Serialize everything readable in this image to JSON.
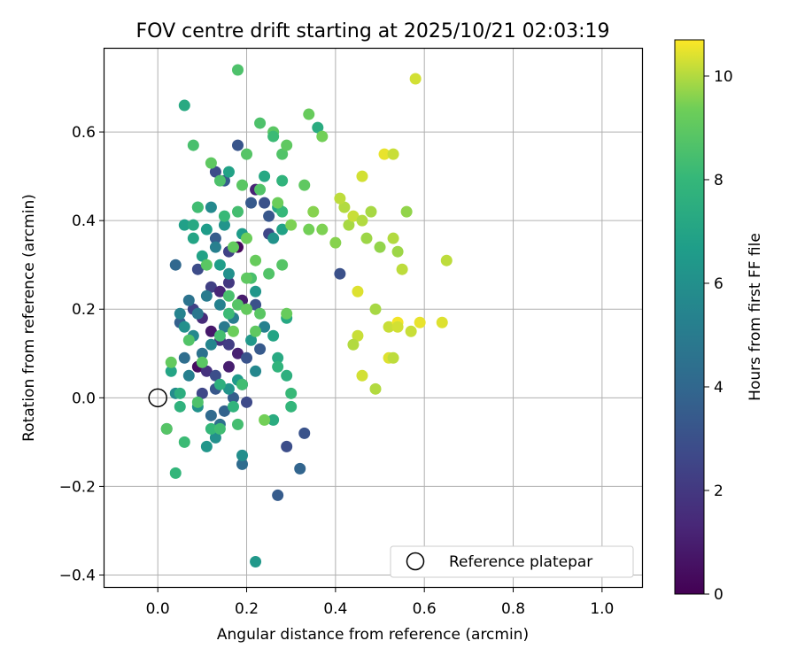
{
  "chart_data": {
    "type": "scatter",
    "title": "FOV centre drift starting at 2025/10/21 02:03:19",
    "xlabel": "Angular distance from reference (arcmin)",
    "ylabel": "Rotation from reference (arcmin)",
    "xlim": [
      -0.12,
      1.09
    ],
    "ylim": [
      -0.427,
      0.788
    ],
    "xticks": [
      0.0,
      0.2,
      0.4,
      0.6,
      0.8,
      1.0
    ],
    "xtick_labels": [
      "0.0",
      "0.2",
      "0.4",
      "0.6",
      "0.8",
      "1.0"
    ],
    "yticks": [
      -0.4,
      -0.2,
      0.0,
      0.2,
      0.4,
      0.6
    ],
    "ytick_labels": [
      "−0.4",
      "−0.2",
      "0.0",
      "0.2",
      "0.4",
      "0.6"
    ],
    "grid": true,
    "colorbar": {
      "label": "Hours from first FF file",
      "range": [
        0,
        10.7
      ],
      "colormap": "viridis",
      "ticks": [
        0,
        2,
        4,
        6,
        8,
        10
      ],
      "tick_labels": [
        "0",
        "2",
        "4",
        "6",
        "8",
        "10"
      ]
    },
    "legend": {
      "position": "lower-right",
      "label": "Reference platepar",
      "marker": "open circle"
    },
    "reference_point": {
      "x": 0.0,
      "y": 0.0
    },
    "points": [
      {
        "x": 0.18,
        "y": 0.57,
        "h": 3.2
      },
      {
        "x": 0.13,
        "y": 0.51,
        "h": 2.8
      },
      {
        "x": 0.15,
        "y": 0.49,
        "h": 3.5
      },
      {
        "x": 0.22,
        "y": 0.47,
        "h": 1.2
      },
      {
        "x": 0.24,
        "y": 0.44,
        "h": 3.0
      },
      {
        "x": 0.21,
        "y": 0.44,
        "h": 3.4
      },
      {
        "x": 0.25,
        "y": 0.41,
        "h": 3.3
      },
      {
        "x": 0.25,
        "y": 0.37,
        "h": 2.6
      },
      {
        "x": 0.41,
        "y": 0.28,
        "h": 3.0
      },
      {
        "x": 0.04,
        "y": 0.3,
        "h": 4.0
      },
      {
        "x": 0.13,
        "y": 0.36,
        "h": 3.5
      },
      {
        "x": 0.16,
        "y": 0.33,
        "h": 2.4
      },
      {
        "x": 0.18,
        "y": 0.34,
        "h": 0.3
      },
      {
        "x": 0.09,
        "y": 0.29,
        "h": 2.8
      },
      {
        "x": 0.12,
        "y": 0.25,
        "h": 2.3
      },
      {
        "x": 0.14,
        "y": 0.24,
        "h": 1.3
      },
      {
        "x": 0.16,
        "y": 0.26,
        "h": 2.0
      },
      {
        "x": 0.19,
        "y": 0.22,
        "h": 0.9
      },
      {
        "x": 0.22,
        "y": 0.21,
        "h": 3.0
      },
      {
        "x": 0.08,
        "y": 0.2,
        "h": 2.4
      },
      {
        "x": 0.1,
        "y": 0.18,
        "h": 1.5
      },
      {
        "x": 0.12,
        "y": 0.15,
        "h": 0.8
      },
      {
        "x": 0.14,
        "y": 0.13,
        "h": 1.8
      },
      {
        "x": 0.16,
        "y": 0.12,
        "h": 2.2
      },
      {
        "x": 0.18,
        "y": 0.1,
        "h": 1.1
      },
      {
        "x": 0.2,
        "y": 0.09,
        "h": 3.1
      },
      {
        "x": 0.23,
        "y": 0.11,
        "h": 3.4
      },
      {
        "x": 0.09,
        "y": 0.07,
        "h": 0.4
      },
      {
        "x": 0.11,
        "y": 0.06,
        "h": 1.7
      },
      {
        "x": 0.13,
        "y": 0.05,
        "h": 2.9
      },
      {
        "x": 0.16,
        "y": 0.07,
        "h": 1.0
      },
      {
        "x": 0.19,
        "y": 0.03,
        "h": 1.9
      },
      {
        "x": 0.1,
        "y": 0.01,
        "h": 2.6
      },
      {
        "x": 0.13,
        "y": 0.02,
        "h": 3.3
      },
      {
        "x": 0.17,
        "y": 0.0,
        "h": 3.6
      },
      {
        "x": 0.2,
        "y": -0.01,
        "h": 2.7
      },
      {
        "x": 0.15,
        "y": -0.03,
        "h": 3.8
      },
      {
        "x": 0.12,
        "y": -0.04,
        "h": 4.1
      },
      {
        "x": 0.14,
        "y": -0.06,
        "h": 4.4
      },
      {
        "x": 0.29,
        "y": -0.11,
        "h": 2.9
      },
      {
        "x": 0.33,
        "y": -0.08,
        "h": 3.1
      },
      {
        "x": 0.32,
        "y": -0.16,
        "h": 3.9
      },
      {
        "x": 0.27,
        "y": -0.22,
        "h": 3.5
      },
      {
        "x": 0.19,
        "y": -0.15,
        "h": 4.2
      },
      {
        "x": 0.02,
        "y": -0.07,
        "h": 4.0
      },
      {
        "x": 0.06,
        "y": 0.09,
        "h": 4.3
      },
      {
        "x": 0.05,
        "y": 0.17,
        "h": 3.7
      },
      {
        "x": 0.07,
        "y": 0.22,
        "h": 4.6
      },
      {
        "x": 0.09,
        "y": 0.19,
        "h": 4.8
      },
      {
        "x": 0.11,
        "y": 0.23,
        "h": 5.0
      },
      {
        "x": 0.14,
        "y": 0.21,
        "h": 5.3
      },
      {
        "x": 0.17,
        "y": 0.18,
        "h": 5.1
      },
      {
        "x": 0.15,
        "y": 0.16,
        "h": 4.9
      },
      {
        "x": 0.12,
        "y": 0.12,
        "h": 5.5
      },
      {
        "x": 0.1,
        "y": 0.1,
        "h": 4.5
      },
      {
        "x": 0.08,
        "y": 0.14,
        "h": 5.7
      },
      {
        "x": 0.06,
        "y": 0.16,
        "h": 6.0
      },
      {
        "x": 0.05,
        "y": 0.19,
        "h": 5.4
      },
      {
        "x": 0.07,
        "y": 0.05,
        "h": 5.2
      },
      {
        "x": 0.04,
        "y": 0.01,
        "h": 5.8
      },
      {
        "x": 0.09,
        "y": -0.02,
        "h": 6.1
      },
      {
        "x": 0.11,
        "y": -0.11,
        "h": 6.3
      },
      {
        "x": 0.13,
        "y": -0.09,
        "h": 6.0
      },
      {
        "x": 0.19,
        "y": -0.13,
        "h": 5.9
      },
      {
        "x": 0.22,
        "y": 0.06,
        "h": 5.6
      },
      {
        "x": 0.16,
        "y": 0.02,
        "h": 6.2
      },
      {
        "x": 0.18,
        "y": 0.04,
        "h": 6.5
      },
      {
        "x": 0.21,
        "y": 0.13,
        "h": 6.4
      },
      {
        "x": 0.24,
        "y": 0.16,
        "h": 5.3
      },
      {
        "x": 0.12,
        "y": 0.43,
        "h": 5.7
      },
      {
        "x": 0.15,
        "y": 0.39,
        "h": 6.2
      },
      {
        "x": 0.11,
        "y": 0.38,
        "h": 6.6
      },
      {
        "x": 0.08,
        "y": 0.36,
        "h": 7.0
      },
      {
        "x": 0.14,
        "y": 0.3,
        "h": 6.7
      },
      {
        "x": 0.16,
        "y": 0.28,
        "h": 6.0
      },
      {
        "x": 0.13,
        "y": 0.34,
        "h": 5.2
      },
      {
        "x": 0.1,
        "y": 0.32,
        "h": 6.9
      },
      {
        "x": 0.06,
        "y": 0.39,
        "h": 6.8
      },
      {
        "x": 0.08,
        "y": 0.39,
        "h": 7.2
      },
      {
        "x": 0.19,
        "y": 0.37,
        "h": 6.6
      },
      {
        "x": 0.22,
        "y": 0.24,
        "h": 6.3
      },
      {
        "x": 0.26,
        "y": 0.36,
        "h": 6.1
      },
      {
        "x": 0.28,
        "y": 0.38,
        "h": 6.9
      },
      {
        "x": 0.27,
        "y": 0.43,
        "h": 7.1
      },
      {
        "x": 0.24,
        "y": 0.5,
        "h": 7.2
      },
      {
        "x": 0.16,
        "y": 0.51,
        "h": 6.9
      },
      {
        "x": 0.06,
        "y": 0.66,
        "h": 7.3
      },
      {
        "x": 0.36,
        "y": 0.61,
        "h": 7.4
      },
      {
        "x": 0.26,
        "y": 0.14,
        "h": 7.0
      },
      {
        "x": 0.27,
        "y": 0.09,
        "h": 7.3
      },
      {
        "x": 0.29,
        "y": 0.05,
        "h": 7.6
      },
      {
        "x": 0.27,
        "y": 0.07,
        "h": 7.8
      },
      {
        "x": 0.3,
        "y": 0.01,
        "h": 8.1
      },
      {
        "x": 0.3,
        "y": -0.02,
        "h": 7.9
      },
      {
        "x": 0.26,
        "y": -0.05,
        "h": 7.4
      },
      {
        "x": 0.29,
        "y": 0.18,
        "h": 7.2
      },
      {
        "x": 0.05,
        "y": 0.01,
        "h": 7.5
      },
      {
        "x": 0.05,
        "y": -0.02,
        "h": 7.7
      },
      {
        "x": 0.03,
        "y": 0.06,
        "h": 7.0
      },
      {
        "x": 0.04,
        "y": -0.17,
        "h": 7.9
      },
      {
        "x": 0.06,
        "y": -0.1,
        "h": 8.2
      },
      {
        "x": 0.12,
        "y": -0.07,
        "h": 8.0
      },
      {
        "x": 0.14,
        "y": -0.07,
        "h": 8.3
      },
      {
        "x": 0.18,
        "y": -0.06,
        "h": 8.4
      },
      {
        "x": 0.22,
        "y": -0.37,
        "h": 6.4
      },
      {
        "x": 0.17,
        "y": -0.02,
        "h": 7.8
      },
      {
        "x": 0.14,
        "y": 0.03,
        "h": 7.6
      },
      {
        "x": 0.19,
        "y": 0.03,
        "h": 8.3
      },
      {
        "x": 0.02,
        "y": -0.07,
        "h": 8.8
      },
      {
        "x": 0.09,
        "y": -0.01,
        "h": 8.6
      },
      {
        "x": 0.03,
        "y": 0.08,
        "h": 9.1
      },
      {
        "x": 0.1,
        "y": 0.08,
        "h": 8.9
      },
      {
        "x": 0.07,
        "y": 0.13,
        "h": 8.7
      },
      {
        "x": 0.14,
        "y": 0.14,
        "h": 8.4
      },
      {
        "x": 0.16,
        "y": 0.19,
        "h": 8.2
      },
      {
        "x": 0.18,
        "y": 0.21,
        "h": 8.8
      },
      {
        "x": 0.21,
        "y": 0.27,
        "h": 8.5
      },
      {
        "x": 0.23,
        "y": 0.19,
        "h": 8.9
      },
      {
        "x": 0.22,
        "y": 0.15,
        "h": 9.0
      },
      {
        "x": 0.15,
        "y": 0.41,
        "h": 8.1
      },
      {
        "x": 0.18,
        "y": 0.42,
        "h": 8.4
      },
      {
        "x": 0.09,
        "y": 0.43,
        "h": 7.9
      },
      {
        "x": 0.28,
        "y": 0.42,
        "h": 8.0
      },
      {
        "x": 0.28,
        "y": 0.49,
        "h": 7.8
      },
      {
        "x": 0.14,
        "y": 0.49,
        "h": 8.6
      },
      {
        "x": 0.19,
        "y": 0.48,
        "h": 8.9
      },
      {
        "x": 0.23,
        "y": 0.47,
        "h": 8.7
      },
      {
        "x": 0.12,
        "y": 0.53,
        "h": 9.0
      },
      {
        "x": 0.2,
        "y": 0.55,
        "h": 8.8
      },
      {
        "x": 0.08,
        "y": 0.57,
        "h": 8.5
      },
      {
        "x": 0.23,
        "y": 0.62,
        "h": 8.6
      },
      {
        "x": 0.26,
        "y": 0.6,
        "h": 8.9
      },
      {
        "x": 0.26,
        "y": 0.59,
        "h": 8.2
      },
      {
        "x": 0.28,
        "y": 0.55,
        "h": 8.7
      },
      {
        "x": 0.29,
        "y": 0.57,
        "h": 9.0
      },
      {
        "x": 0.18,
        "y": 0.74,
        "h": 8.6
      },
      {
        "x": 0.34,
        "y": 0.64,
        "h": 9.2
      },
      {
        "x": 0.37,
        "y": 0.59,
        "h": 9.4
      },
      {
        "x": 0.33,
        "y": 0.48,
        "h": 9.0
      },
      {
        "x": 0.27,
        "y": 0.44,
        "h": 9.3
      },
      {
        "x": 0.3,
        "y": 0.39,
        "h": 9.5
      },
      {
        "x": 0.34,
        "y": 0.38,
        "h": 9.4
      },
      {
        "x": 0.35,
        "y": 0.42,
        "h": 9.6
      },
      {
        "x": 0.37,
        "y": 0.38,
        "h": 9.5
      },
      {
        "x": 0.25,
        "y": 0.28,
        "h": 8.7
      },
      {
        "x": 0.22,
        "y": 0.31,
        "h": 9.2
      },
      {
        "x": 0.2,
        "y": 0.27,
        "h": 9.0
      },
      {
        "x": 0.17,
        "y": 0.34,
        "h": 9.1
      },
      {
        "x": 0.2,
        "y": 0.36,
        "h": 9.3
      },
      {
        "x": 0.11,
        "y": 0.3,
        "h": 8.9
      },
      {
        "x": 0.16,
        "y": 0.23,
        "h": 8.5
      },
      {
        "x": 0.2,
        "y": 0.2,
        "h": 9.1
      },
      {
        "x": 0.17,
        "y": 0.15,
        "h": 9.3
      },
      {
        "x": 0.28,
        "y": 0.3,
        "h": 8.8
      },
      {
        "x": 0.29,
        "y": 0.19,
        "h": 9.2
      },
      {
        "x": 0.24,
        "y": -0.05,
        "h": 9.4
      },
      {
        "x": 0.09,
        "y": 0.43,
        "h": 8.3
      },
      {
        "x": 0.4,
        "y": 0.35,
        "h": 9.6
      },
      {
        "x": 0.43,
        "y": 0.39,
        "h": 9.9
      },
      {
        "x": 0.42,
        "y": 0.43,
        "h": 10.0
      },
      {
        "x": 0.41,
        "y": 0.45,
        "h": 10.1
      },
      {
        "x": 0.44,
        "y": 0.41,
        "h": 10.2
      },
      {
        "x": 0.46,
        "y": 0.4,
        "h": 10.0
      },
      {
        "x": 0.47,
        "y": 0.36,
        "h": 9.8
      },
      {
        "x": 0.48,
        "y": 0.42,
        "h": 9.9
      },
      {
        "x": 0.5,
        "y": 0.34,
        "h": 9.7
      },
      {
        "x": 0.46,
        "y": 0.5,
        "h": 10.3
      },
      {
        "x": 0.51,
        "y": 0.55,
        "h": 10.5
      },
      {
        "x": 0.53,
        "y": 0.55,
        "h": 10.2
      },
      {
        "x": 0.53,
        "y": 0.36,
        "h": 10.0
      },
      {
        "x": 0.54,
        "y": 0.33,
        "h": 9.8
      },
      {
        "x": 0.55,
        "y": 0.29,
        "h": 10.1
      },
      {
        "x": 0.56,
        "y": 0.42,
        "h": 9.7
      },
      {
        "x": 0.45,
        "y": 0.24,
        "h": 10.4
      },
      {
        "x": 0.49,
        "y": 0.2,
        "h": 9.9
      },
      {
        "x": 0.52,
        "y": 0.16,
        "h": 10.2
      },
      {
        "x": 0.54,
        "y": 0.17,
        "h": 10.6
      },
      {
        "x": 0.54,
        "y": 0.16,
        "h": 10.3
      },
      {
        "x": 0.57,
        "y": 0.15,
        "h": 10.2
      },
      {
        "x": 0.59,
        "y": 0.17,
        "h": 10.5
      },
      {
        "x": 0.64,
        "y": 0.17,
        "h": 10.4
      },
      {
        "x": 0.65,
        "y": 0.31,
        "h": 10.1
      },
      {
        "x": 0.58,
        "y": 0.72,
        "h": 10.3
      },
      {
        "x": 0.45,
        "y": 0.14,
        "h": 10.2
      },
      {
        "x": 0.44,
        "y": 0.12,
        "h": 10.0
      },
      {
        "x": 0.52,
        "y": 0.09,
        "h": 10.4
      },
      {
        "x": 0.53,
        "y": 0.09,
        "h": 10.1
      },
      {
        "x": 0.46,
        "y": 0.05,
        "h": 10.3
      },
      {
        "x": 0.49,
        "y": 0.02,
        "h": 10.0
      }
    ]
  }
}
